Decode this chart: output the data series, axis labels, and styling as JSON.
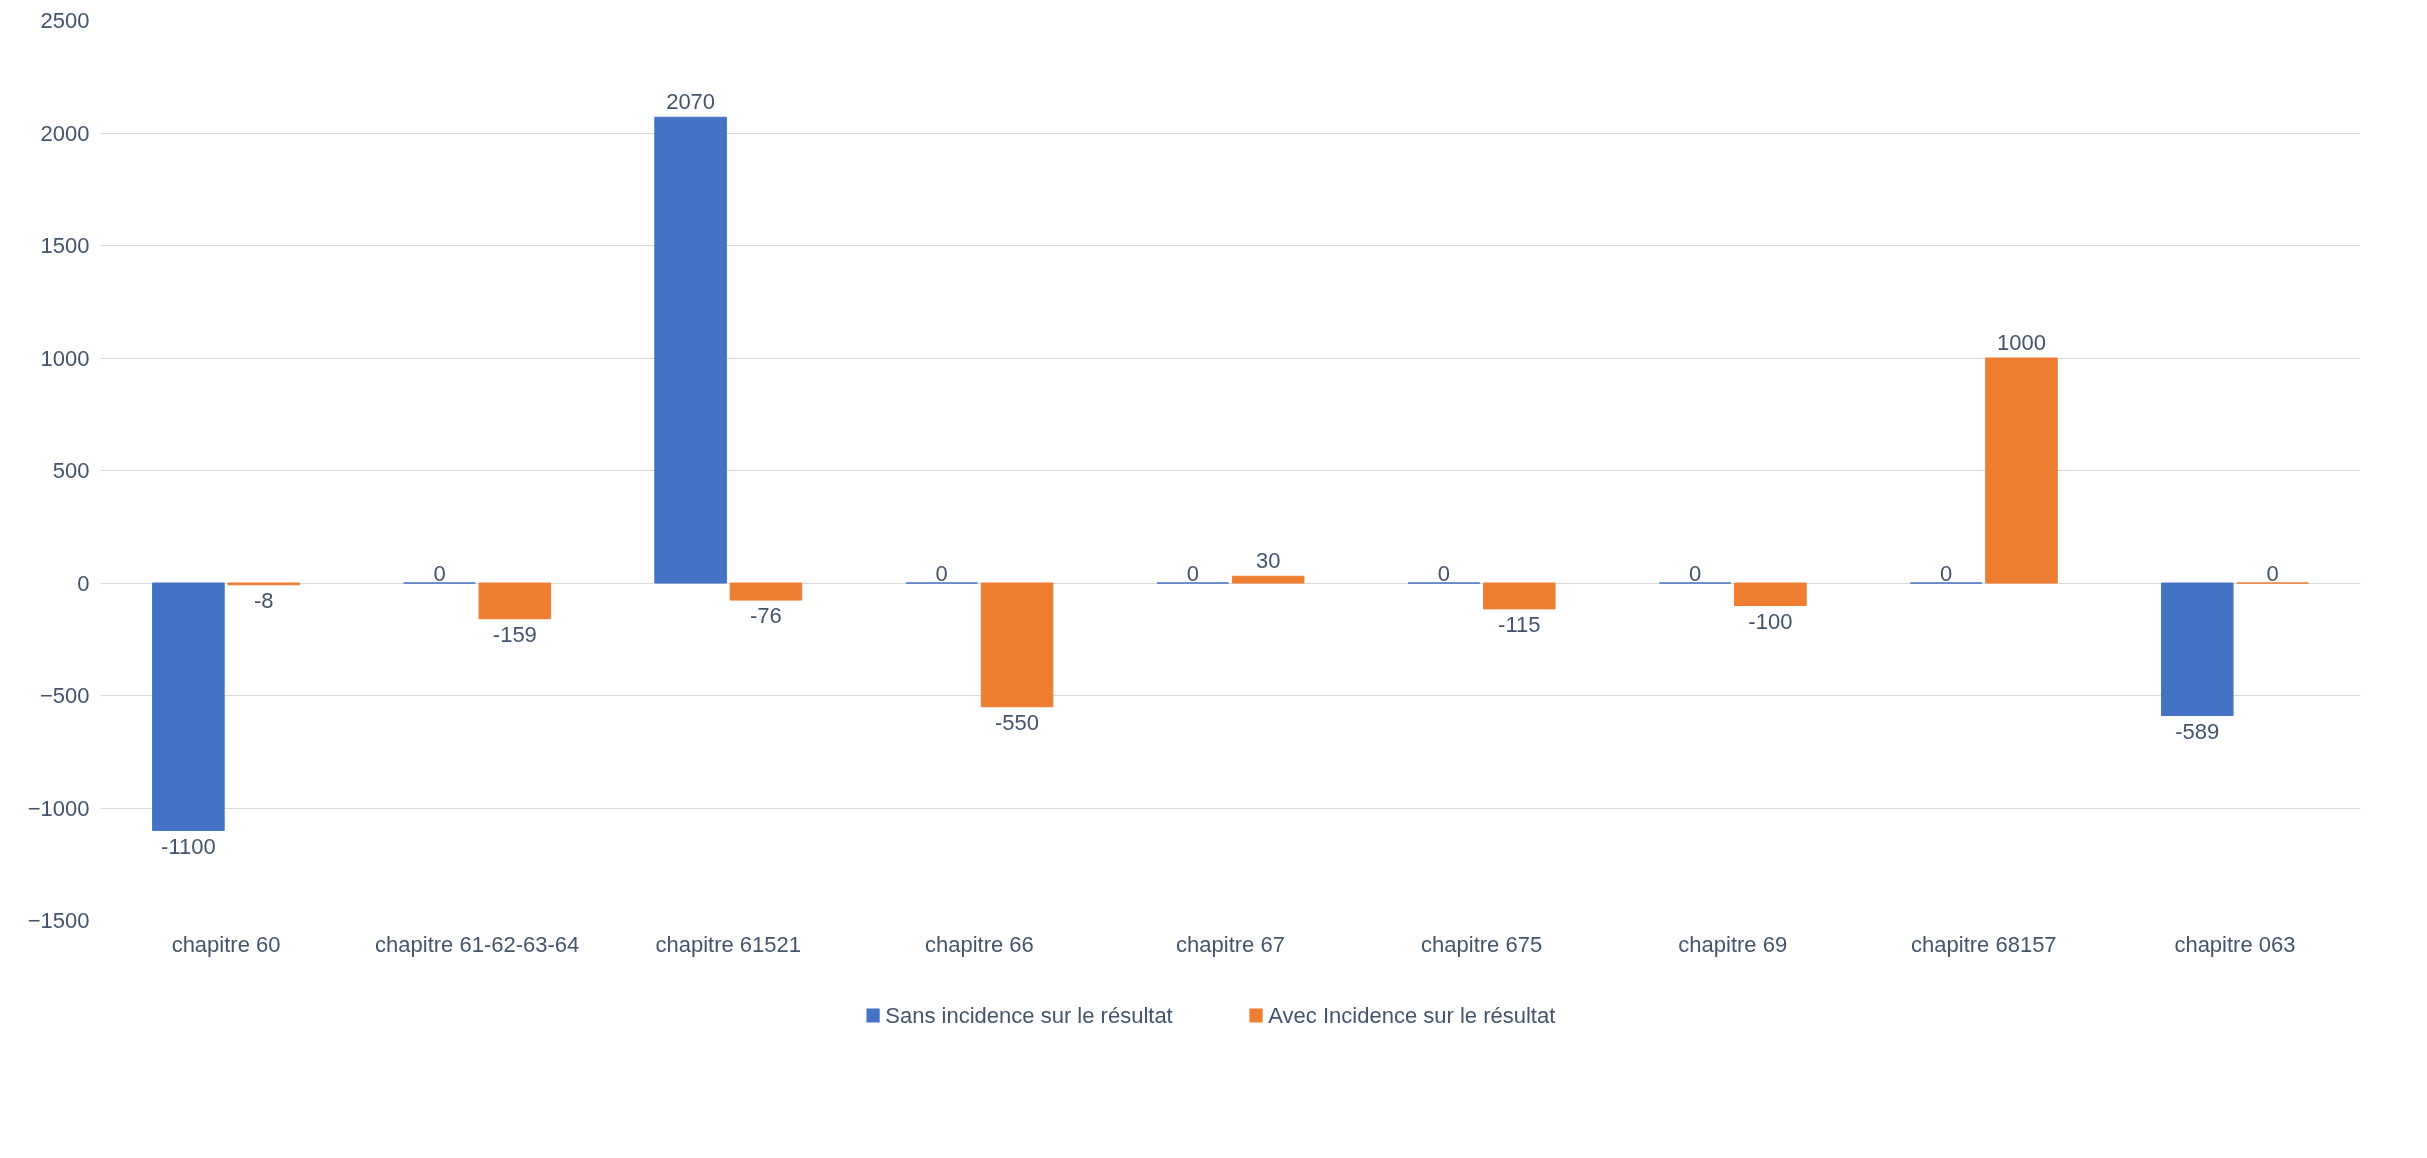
{
  "chart_data": {
    "type": "bar",
    "categories": [
      "chapitre 60",
      "chapitre 61-62-63-64",
      "chapitre 61521",
      "chapitre 66",
      "chapitre 67",
      "chapitre 675",
      "chapitre 69",
      "chapitre 68157",
      "chapitre 063"
    ],
    "series": [
      {
        "name": "Sans incidence sur le résultat",
        "color": "#4472c4",
        "values": [
          -1100,
          0,
          2070,
          0,
          0,
          0,
          0,
          0,
          -589
        ]
      },
      {
        "name": "Avec Incidence sur le résultat",
        "color": "#ed7d31",
        "values": [
          -8,
          -159,
          -76,
          -550,
          30,
          -115,
          -100,
          1000,
          0
        ]
      }
    ],
    "ylim": [
      -1500,
      2500
    ],
    "yticks": [
      -1500,
      -1000,
      -500,
      0,
      500,
      1000,
      1500,
      2000,
      2500
    ],
    "grid": "y",
    "legend": "bottom",
    "data_labels": true
  }
}
